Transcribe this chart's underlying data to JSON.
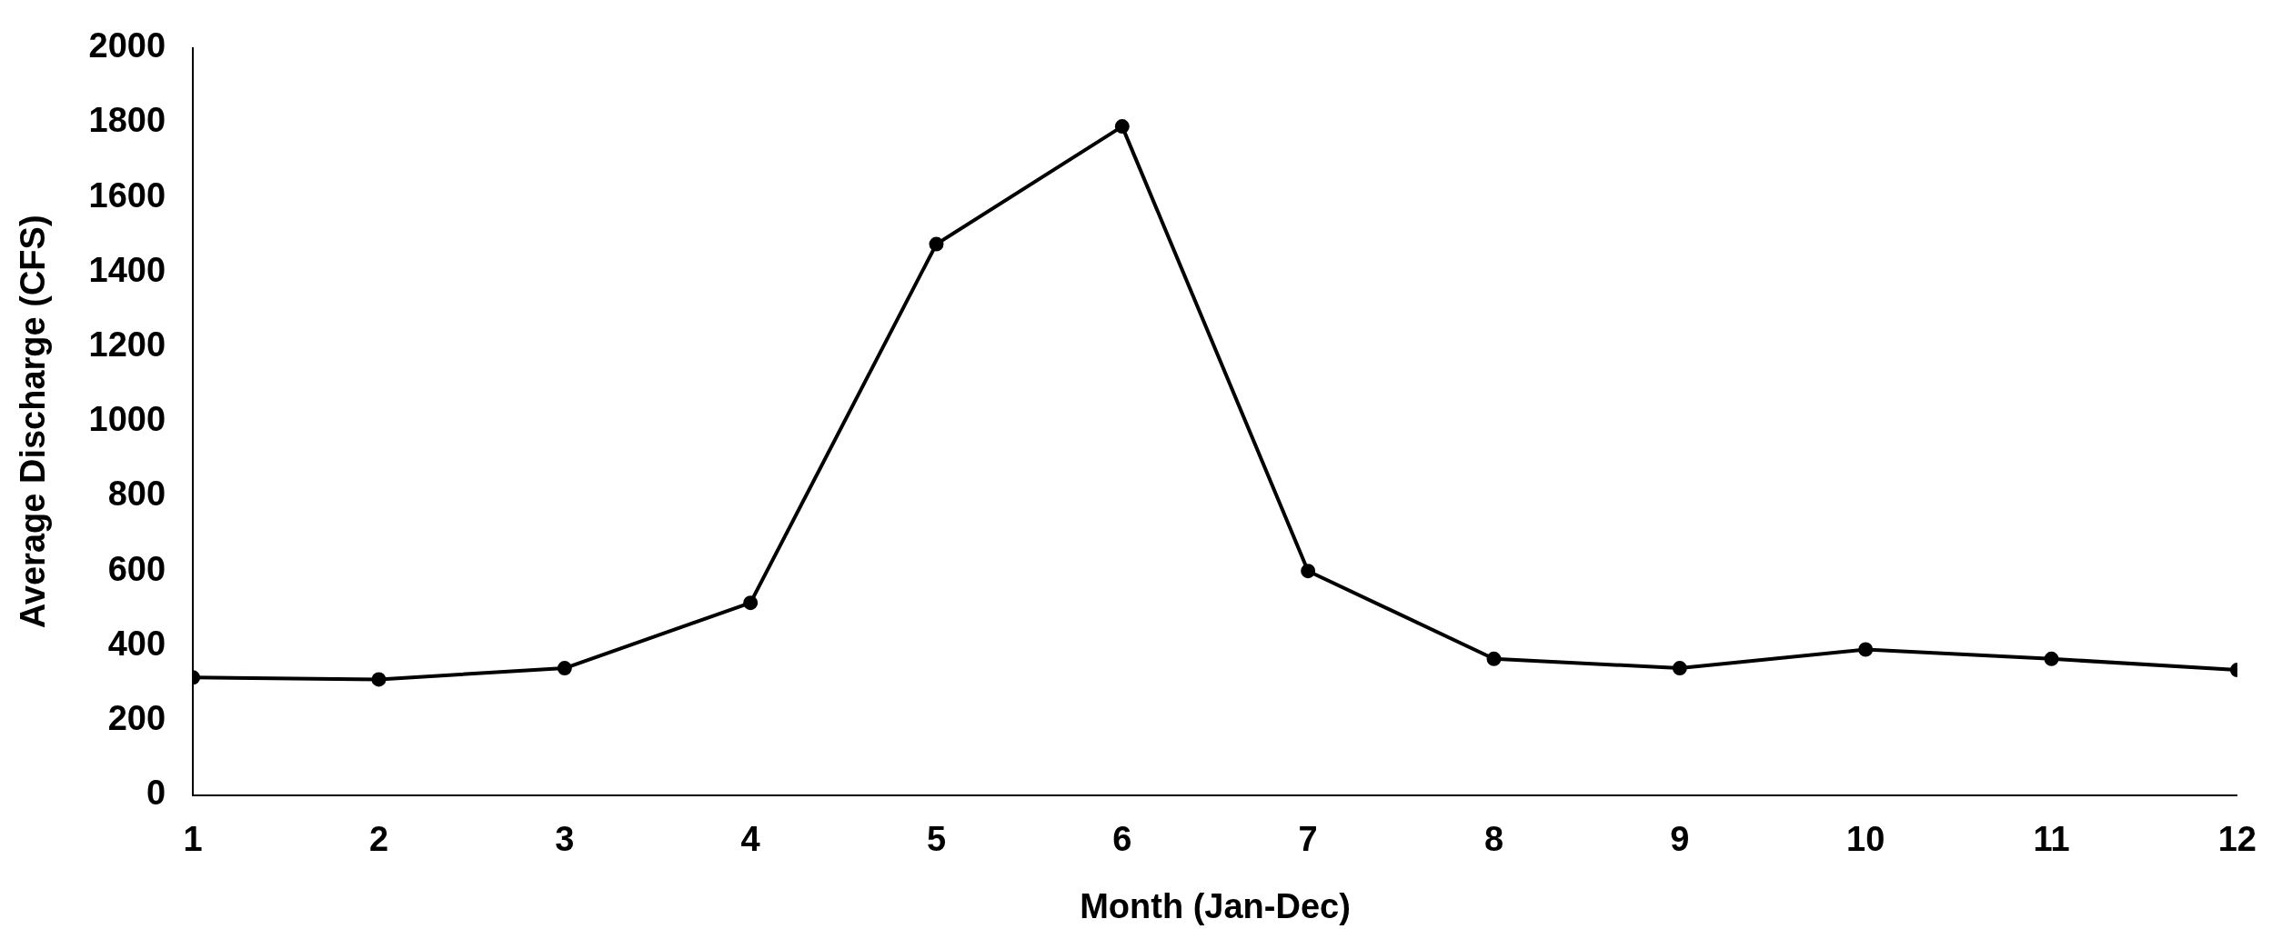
{
  "chart_data": {
    "type": "line",
    "xlabel": "Month (Jan-Dec)",
    "ylabel": "Average Discharge (CFS)",
    "x": [
      1,
      2,
      3,
      4,
      5,
      6,
      7,
      8,
      9,
      10,
      11,
      12
    ],
    "xlim": [
      1,
      12
    ],
    "xticks": [
      1,
      2,
      3,
      4,
      5,
      6,
      7,
      8,
      9,
      10,
      11,
      12
    ],
    "series": [
      {
        "color": "#000000",
        "values": [
          315,
          310,
          340,
          515,
          1475,
          1790,
          600,
          365,
          340,
          390,
          365,
          335
        ]
      }
    ],
    "ylim": [
      0,
      2000
    ],
    "yticks": [
      0,
      200,
      400,
      600,
      800,
      1000,
      1200,
      1400,
      1600,
      1800,
      2000
    ],
    "grid": false,
    "legend": false,
    "marker": "circle",
    "line_style": "solid"
  }
}
